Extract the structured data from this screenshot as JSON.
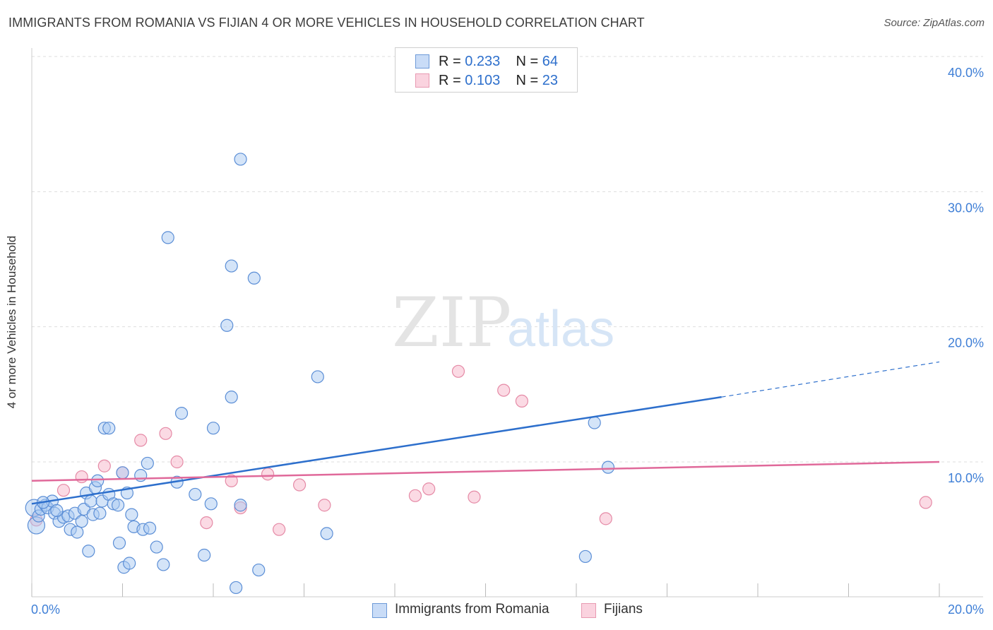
{
  "title": "IMMIGRANTS FROM ROMANIA VS FIJIAN 4 OR MORE VEHICLES IN HOUSEHOLD CORRELATION CHART",
  "source": "Source: ZipAtlas.com",
  "watermark": {
    "zip": "ZIP",
    "atlas": "atlas"
  },
  "legend": {
    "rows": [
      {
        "r_label": "R =",
        "r_value": "0.233",
        "n_label": "N =",
        "n_value": "64"
      },
      {
        "r_label": "R =",
        "r_value": "0.103",
        "n_label": "N =",
        "n_value": "23"
      }
    ]
  },
  "colors": {
    "romania_fill": "#a9c9f2",
    "romania_stroke": "#5b8ed6",
    "romania_line": "#2d6fcc",
    "fijian_fill": "#f7bccd",
    "fijian_stroke": "#e58aa6",
    "fijian_line": "#e0699a",
    "axis_text": "#3f7fd6",
    "grid": "#dddddd"
  },
  "chart_data": {
    "type": "scatter",
    "title": "IMMIGRANTS FROM ROMANIA VS FIJIAN 4 OR MORE VEHICLES IN HOUSEHOLD CORRELATION CHART",
    "xlabel": "",
    "ylabel": "4 or more Vehicles in Household",
    "xlim": [
      0,
      20
    ],
    "ylim": [
      0,
      40
    ],
    "x_tick_labels": [
      "0.0%",
      "20.0%"
    ],
    "y_ticks": [
      10,
      20,
      30,
      40
    ],
    "y_tick_labels": [
      "10.0%",
      "20.0%",
      "30.0%",
      "40.0%"
    ],
    "grid": true,
    "legend_position": "top-center",
    "series": [
      {
        "name": "Immigrants from Romania",
        "r": 0.233,
        "n": 64,
        "trend": {
          "x0": 0,
          "y0": 6.9,
          "x1": 15.2,
          "y1": 14.8,
          "dashed_to_x": 20,
          "dashed_to_y": 17.4
        },
        "points": [
          [
            0.05,
            6.6
          ],
          [
            0.1,
            5.3
          ],
          [
            0.15,
            6.0
          ],
          [
            0.2,
            6.5
          ],
          [
            0.3,
            6.8
          ],
          [
            0.35,
            6.6
          ],
          [
            0.45,
            7.1
          ],
          [
            0.5,
            6.2
          ],
          [
            0.6,
            5.6
          ],
          [
            0.7,
            5.9
          ],
          [
            0.8,
            6.0
          ],
          [
            0.85,
            5.0
          ],
          [
            0.95,
            6.2
          ],
          [
            1.0,
            4.8
          ],
          [
            1.1,
            5.6
          ],
          [
            1.15,
            6.5
          ],
          [
            1.2,
            7.7
          ],
          [
            1.25,
            3.4
          ],
          [
            1.3,
            7.1
          ],
          [
            1.35,
            6.1
          ],
          [
            1.4,
            8.1
          ],
          [
            1.45,
            8.6
          ],
          [
            1.5,
            6.2
          ],
          [
            1.55,
            7.1
          ],
          [
            1.6,
            12.5
          ],
          [
            1.7,
            12.5
          ],
          [
            1.7,
            7.6
          ],
          [
            1.8,
            6.9
          ],
          [
            1.9,
            6.8
          ],
          [
            1.93,
            4.0
          ],
          [
            2.0,
            9.2
          ],
          [
            2.03,
            2.2
          ],
          [
            2.1,
            7.7
          ],
          [
            2.15,
            2.5
          ],
          [
            2.2,
            6.1
          ],
          [
            2.25,
            5.2
          ],
          [
            2.4,
            9.0
          ],
          [
            2.45,
            5.0
          ],
          [
            2.55,
            9.9
          ],
          [
            2.6,
            5.1
          ],
          [
            2.75,
            3.7
          ],
          [
            2.9,
            2.4
          ],
          [
            3.0,
            26.6
          ],
          [
            3.2,
            8.5
          ],
          [
            3.3,
            13.6
          ],
          [
            3.6,
            7.6
          ],
          [
            3.8,
            3.1
          ],
          [
            3.95,
            6.9
          ],
          [
            4.0,
            12.5
          ],
          [
            4.3,
            20.1
          ],
          [
            4.4,
            24.5
          ],
          [
            4.4,
            14.8
          ],
          [
            4.5,
            0.7
          ],
          [
            4.6,
            6.8
          ],
          [
            4.6,
            32.4
          ],
          [
            4.9,
            23.6
          ],
          [
            5.0,
            2.0
          ],
          [
            6.3,
            16.3
          ],
          [
            6.5,
            4.7
          ],
          [
            12.2,
            3.0
          ],
          [
            12.4,
            12.9
          ],
          [
            12.7,
            9.6
          ],
          [
            0.25,
            7.0
          ],
          [
            0.55,
            6.4
          ]
        ]
      },
      {
        "name": "Fijians",
        "r": 0.103,
        "n": 23,
        "trend": {
          "x0": 0,
          "y0": 8.6,
          "x1": 20,
          "y1": 10.0
        },
        "points": [
          [
            0.1,
            5.7
          ],
          [
            0.7,
            7.9
          ],
          [
            1.1,
            8.9
          ],
          [
            1.6,
            9.7
          ],
          [
            2.0,
            9.2
          ],
          [
            2.4,
            11.6
          ],
          [
            2.95,
            12.1
          ],
          [
            3.2,
            10.0
          ],
          [
            3.85,
            5.5
          ],
          [
            4.4,
            8.6
          ],
          [
            4.6,
            6.6
          ],
          [
            5.2,
            9.1
          ],
          [
            5.45,
            5.0
          ],
          [
            5.9,
            8.3
          ],
          [
            6.45,
            6.8
          ],
          [
            8.45,
            7.5
          ],
          [
            8.75,
            8.0
          ],
          [
            9.4,
            16.7
          ],
          [
            9.75,
            7.4
          ],
          [
            10.4,
            15.3
          ],
          [
            10.8,
            14.5
          ],
          [
            12.65,
            5.8
          ],
          [
            19.7,
            7.0
          ]
        ]
      }
    ]
  },
  "bottom_legend": [
    {
      "label": "Immigrants from Romania"
    },
    {
      "label": "Fijians"
    }
  ]
}
